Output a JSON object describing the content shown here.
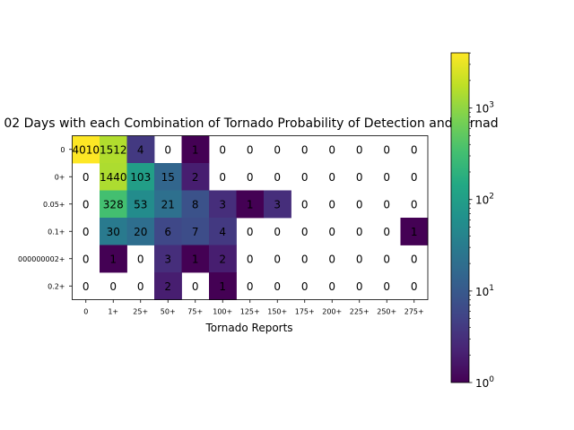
{
  "chart_data": {
    "type": "heatmap",
    "title": "02 Days with each Combination of Tornado Probability of Detection and Tornad",
    "xlabel": "Tornado Reports",
    "ylabel": "",
    "x_categories": [
      "0",
      "1+",
      "25+",
      "50+",
      "75+",
      "100+",
      "125+",
      "150+",
      "175+",
      "200+",
      "225+",
      "250+",
      "275+"
    ],
    "y_categories": [
      "0",
      "0+",
      "0.05+",
      "0.1+",
      "000000002+",
      "0.2+"
    ],
    "values": [
      [
        4010,
        1512,
        4,
        0,
        1,
        0,
        0,
        0,
        0,
        0,
        0,
        0,
        0
      ],
      [
        0,
        1440,
        103,
        15,
        2,
        0,
        0,
        0,
        0,
        0,
        0,
        0,
        0
      ],
      [
        0,
        328,
        53,
        21,
        8,
        3,
        1,
        3,
        0,
        0,
        0,
        0,
        0
      ],
      [
        0,
        30,
        20,
        6,
        7,
        4,
        0,
        0,
        0,
        0,
        0,
        0,
        1
      ],
      [
        0,
        1,
        0,
        3,
        1,
        2,
        0,
        0,
        0,
        0,
        0,
        0,
        0
      ],
      [
        0,
        0,
        0,
        2,
        0,
        1,
        0,
        0,
        0,
        0,
        0,
        0,
        0
      ]
    ],
    "color_scale": "log",
    "colormap": "viridis",
    "colorbar": {
      "range": [
        1,
        4010
      ],
      "ticks": [
        {
          "value": 1,
          "label": "10",
          "exp": "0"
        },
        {
          "value": 10,
          "label": "10",
          "exp": "1"
        },
        {
          "value": 100,
          "label": "10",
          "exp": "2"
        },
        {
          "value": 1000,
          "label": "10",
          "exp": "3"
        }
      ]
    },
    "zero_cells": "blank"
  }
}
